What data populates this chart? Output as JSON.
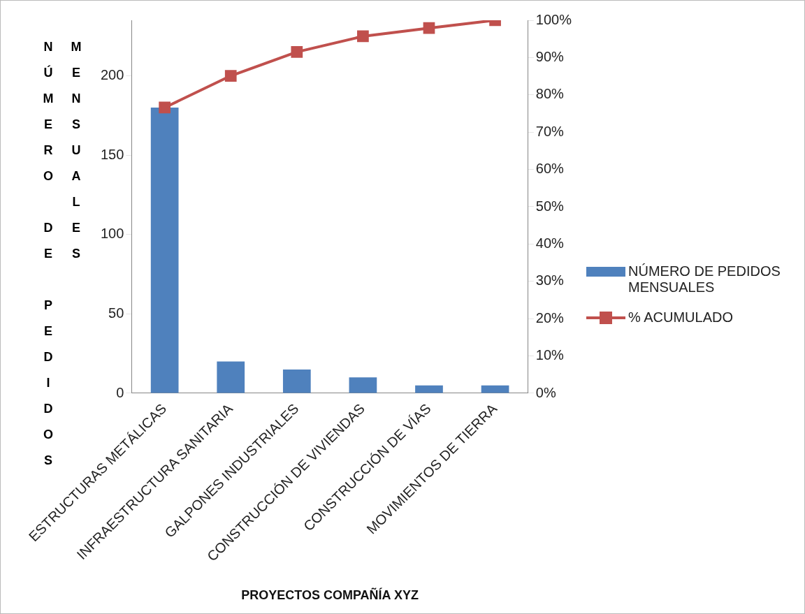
{
  "chart_data": {
    "type": "bar",
    "xlabel": "PROYECTOS COMPAÑÍA XYZ",
    "ylabel": "NÚMERO DE PEDIDOS MENSUALES",
    "categories": [
      "ESTRUCTURAS METÁLICAS",
      "INFRAESTRUCTURA SANITARIA",
      "GALPONES INDUSTRIALES",
      "CONSTRUCCIÓN DE VIVIENDAS",
      "CONSTRUCCIÓN DE VÍAS",
      "MOVIMIENTOS DE TIERRA"
    ],
    "series": [
      {
        "name": "NÚMERO DE PEDIDOS MENSUALES",
        "color": "#4f81bd",
        "values": [
          180,
          20,
          15,
          10,
          5,
          5
        ]
      },
      {
        "name": "% ACUMULADO",
        "type": "line",
        "axis": "y2",
        "color": "#c0504d",
        "values": [
          76.6,
          85.1,
          91.5,
          95.7,
          97.9,
          100
        ]
      }
    ],
    "ylim": [
      0,
      235
    ],
    "yticks": [
      0,
      50,
      100,
      150,
      200
    ],
    "y2lim": [
      0,
      100
    ],
    "y2ticks": [
      {
        "value": 0,
        "label": "0%"
      },
      {
        "value": 10,
        "label": "10%"
      },
      {
        "value": 20,
        "label": "20%"
      },
      {
        "value": 30,
        "label": "30%"
      },
      {
        "value": 40,
        "label": "40%"
      },
      {
        "value": 50,
        "label": "50%"
      },
      {
        "value": 60,
        "label": "60%"
      },
      {
        "value": 70,
        "label": "70%"
      },
      {
        "value": 80,
        "label": "80%"
      },
      {
        "value": 90,
        "label": "90%"
      },
      {
        "value": 100,
        "label": "100%"
      }
    ],
    "grid": false,
    "legend": "right",
    "marker": "square",
    "line_style": "solid"
  }
}
